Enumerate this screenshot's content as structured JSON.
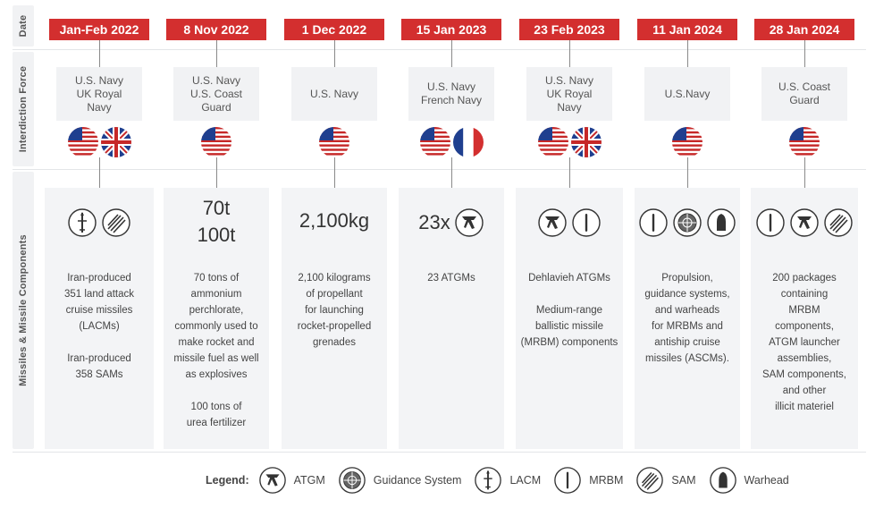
{
  "row_labels": {
    "date": "Date",
    "force": "Interdiction Force",
    "missiles": "Missiles & Missile Components"
  },
  "columns": [
    {
      "date": "Jan-Feb 2022",
      "force": "U.S. Navy\nUK Royal\nNavy",
      "flags": [
        "us-flag",
        "uk-flag"
      ],
      "icons": [
        "lacm",
        "sam"
      ],
      "quantity": "",
      "description": "Iran-produced\n351 land attack\ncruise missiles\n(LACMs)\n\nIran-produced\n358 SAMs"
    },
    {
      "date": "8 Nov 2022",
      "force": "U.S. Navy\nU.S. Coast\nGuard",
      "flags": [
        "us-flag"
      ],
      "icons": [],
      "quantity": "70t\n100t",
      "description": "70 tons of\nammonium\nperchlorate,\ncommonly used to\nmake rocket and\nmissile fuel as well\nas explosives\n\n100 tons of\nurea fertilizer"
    },
    {
      "date": "1 Dec 2022",
      "force": "U.S. Navy",
      "flags": [
        "us-flag"
      ],
      "icons": [],
      "quantity": "2,100kg",
      "description": "2,100 kilograms\nof propellant\nfor launching\nrocket-propelled\ngrenades"
    },
    {
      "date": "15 Jan 2023",
      "force": "U.S. Navy\nFrench Navy",
      "flags": [
        "us-flag",
        "fr-flag"
      ],
      "icons": [
        "atgm"
      ],
      "quantity": "23x",
      "description": "23 ATGMs"
    },
    {
      "date": "23 Feb 2023",
      "force": "U.S. Navy\nUK Royal\nNavy",
      "flags": [
        "us-flag",
        "uk-flag"
      ],
      "icons": [
        "atgm",
        "mrbm"
      ],
      "quantity": "",
      "description": "Dehlavieh ATGMs\n\nMedium-range\nballistic missile\n(MRBM) components"
    },
    {
      "date": "11 Jan 2024",
      "force": "U.S.Navy",
      "flags": [
        "us-flag"
      ],
      "icons": [
        "mrbm",
        "guidance",
        "warhead"
      ],
      "quantity": "",
      "description": "Propulsion,\nguidance systems,\nand warheads\nfor MRBMs and\nantiship cruise\nmissiles (ASCMs)."
    },
    {
      "date": "28 Jan 2024",
      "force": "U.S. Coast\nGuard",
      "flags": [
        "us-flag"
      ],
      "icons": [
        "mrbm",
        "atgm",
        "sam"
      ],
      "quantity": "",
      "description": "200 packages\ncontaining\nMRBM\ncomponents,\nATGM launcher\nassemblies,\nSAM components,\nand other\nillicit materiel"
    }
  ],
  "legend": {
    "title": "Legend:",
    "items": [
      {
        "icon": "atgm",
        "label": "ATGM"
      },
      {
        "icon": "guidance",
        "label": "Guidance System"
      },
      {
        "icon": "lacm",
        "label": "LACM"
      },
      {
        "icon": "mrbm",
        "label": "MRBM"
      },
      {
        "icon": "sam",
        "label": "SAM"
      },
      {
        "icon": "warhead",
        "label": "Warhead"
      }
    ]
  },
  "colors": {
    "date_bg": "#d32f2f",
    "panel_bg": "#f1f2f4",
    "icon_stroke": "#333333"
  }
}
